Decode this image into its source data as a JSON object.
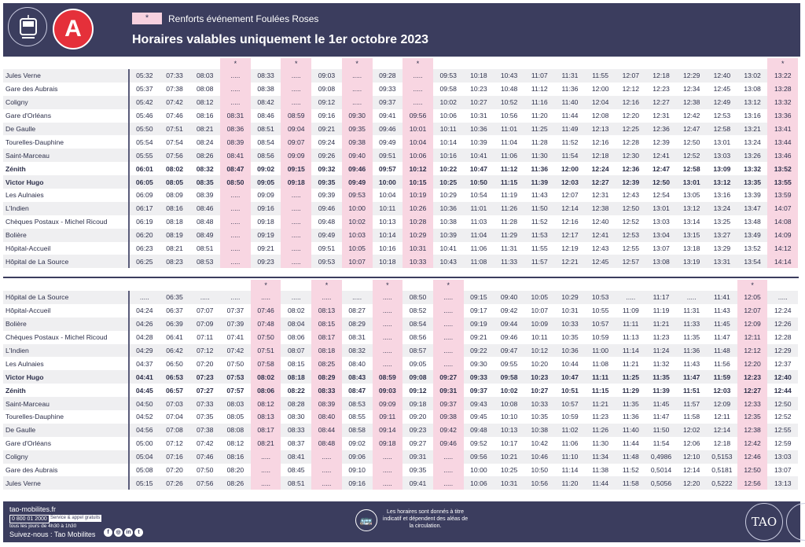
{
  "header": {
    "line_letter": "A",
    "legend_symbol": "*",
    "legend_text": "Renforts événement Foulées Roses",
    "title": "Horaires valables uniquement le 1er octobre 2023",
    "brand_color": "#3b3d5e",
    "line_color": "#e5303a",
    "highlight_color": "#f8d6e2"
  },
  "table1": {
    "marker_cols": [
      4,
      6,
      8,
      10,
      22,
      24
    ],
    "bold_rows": [
      7,
      8
    ],
    "rows": [
      {
        "stop": "Jules Verne",
        "times": [
          "05:32",
          "07:33",
          "08:03",
          ".....",
          "08:33",
          ".....",
          "09:03",
          ".....",
          "09:28",
          ".....",
          "09:53",
          "10:18",
          "10:43",
          "11:07",
          "11:31",
          "11:55",
          "12:07",
          "12:18",
          "12:29",
          "12:40",
          "13:02",
          "13:22"
        ]
      },
      {
        "stop": "Gare des Aubrais",
        "times": [
          "05:37",
          "07:38",
          "08:08",
          ".....",
          "08:38",
          ".....",
          "09:08",
          ".....",
          "09:33",
          ".....",
          "09:58",
          "10:23",
          "10:48",
          "11:12",
          "11:36",
          "12:00",
          "12:12",
          "12:23",
          "12:34",
          "12:45",
          "13:08",
          "13:28"
        ]
      },
      {
        "stop": "Coligny",
        "times": [
          "05:42",
          "07:42",
          "08:12",
          ".....",
          "08:42",
          ".....",
          "09:12",
          ".....",
          "09:37",
          ".....",
          "10:02",
          "10:27",
          "10:52",
          "11:16",
          "11:40",
          "12:04",
          "12:16",
          "12:27",
          "12:38",
          "12:49",
          "13:12",
          "13:32"
        ]
      },
      {
        "stop": "Gare d'Orléans",
        "times": [
          "05:46",
          "07:46",
          "08:16",
          "08:31",
          "08:46",
          "08:59",
          "09:16",
          "09:30",
          "09:41",
          "09:56",
          "10:06",
          "10:31",
          "10:56",
          "11:20",
          "11:44",
          "12:08",
          "12:20",
          "12:31",
          "12:42",
          "12:53",
          "13:16",
          "13:36"
        ]
      },
      {
        "stop": "De Gaulle",
        "times": [
          "05:50",
          "07:51",
          "08:21",
          "08:36",
          "08:51",
          "09:04",
          "09:21",
          "09:35",
          "09:46",
          "10:01",
          "10:11",
          "10:36",
          "11:01",
          "11:25",
          "11:49",
          "12:13",
          "12:25",
          "12:36",
          "12:47",
          "12:58",
          "13:21",
          "13:41"
        ]
      },
      {
        "stop": "Tourelles-Dauphine",
        "times": [
          "05:54",
          "07:54",
          "08:24",
          "08:39",
          "08:54",
          "09:07",
          "09:24",
          "09:38",
          "09:49",
          "10:04",
          "10:14",
          "10:39",
          "11:04",
          "11:28",
          "11:52",
          "12:16",
          "12:28",
          "12:39",
          "12:50",
          "13:01",
          "13:24",
          "13:44"
        ]
      },
      {
        "stop": "Saint-Marceau",
        "times": [
          "05:55",
          "07:56",
          "08:26",
          "08:41",
          "08:56",
          "09:09",
          "09:26",
          "09:40",
          "09:51",
          "10:06",
          "10:16",
          "10:41",
          "11:06",
          "11:30",
          "11:54",
          "12:18",
          "12:30",
          "12:41",
          "12:52",
          "13:03",
          "13:26",
          "13:46"
        ]
      },
      {
        "stop": "Zénith",
        "times": [
          "06:01",
          "08:02",
          "08:32",
          "08:47",
          "09:02",
          "09:15",
          "09:32",
          "09:46",
          "09:57",
          "10:12",
          "10:22",
          "10:47",
          "11:12",
          "11:36",
          "12:00",
          "12:24",
          "12:36",
          "12:47",
          "12:58",
          "13:09",
          "13:32",
          "13:52"
        ]
      },
      {
        "stop": "Victor Hugo",
        "times": [
          "06:05",
          "08:05",
          "08:35",
          "08:50",
          "09:05",
          "09:18",
          "09:35",
          "09:49",
          "10:00",
          "10:15",
          "10:25",
          "10:50",
          "11:15",
          "11:39",
          "12:03",
          "12:27",
          "12:39",
          "12:50",
          "13:01",
          "13:12",
          "13:35",
          "13:55"
        ]
      },
      {
        "stop": "Les Aulnaies",
        "times": [
          "06:09",
          "08:09",
          "08:39",
          ".....",
          "09:09",
          ".....",
          "09:39",
          "09:53",
          "10:04",
          "10:19",
          "10:29",
          "10:54",
          "11:19",
          "11:43",
          "12:07",
          "12:31",
          "12:43",
          "12:54",
          "13:05",
          "13:16",
          "13:39",
          "13:59"
        ]
      },
      {
        "stop": "L'Indien",
        "times": [
          "06:17",
          "08:16",
          "08:46",
          ".....",
          "09:16",
          ".....",
          "09:46",
          "10:00",
          "10:11",
          "10:26",
          "10:36",
          "11:01",
          "11:26",
          "11:50",
          "12:14",
          "12:38",
          "12:50",
          "13:01",
          "13:12",
          "13:24",
          "13:47",
          "14:07"
        ]
      },
      {
        "stop": "Chèques Postaux - Michel Ricoud",
        "times": [
          "06:19",
          "08:18",
          "08:48",
          ".....",
          "09:18",
          ".....",
          "09:48",
          "10:02",
          "10:13",
          "10:28",
          "10:38",
          "11:03",
          "11:28",
          "11:52",
          "12:16",
          "12:40",
          "12:52",
          "13:03",
          "13:14",
          "13:25",
          "13:48",
          "14:08"
        ]
      },
      {
        "stop": "Bolière",
        "times": [
          "06:20",
          "08:19",
          "08:49",
          ".....",
          "09:19",
          ".....",
          "09:49",
          "10:03",
          "10:14",
          "10:29",
          "10:39",
          "11:04",
          "11:29",
          "11:53",
          "12:17",
          "12:41",
          "12:53",
          "13:04",
          "13:15",
          "13:27",
          "13:49",
          "14:09"
        ]
      },
      {
        "stop": "Hôpital-Accueil",
        "times": [
          "06:23",
          "08:21",
          "08:51",
          ".....",
          "09:21",
          ".....",
          "09:51",
          "10:05",
          "10:16",
          "10:31",
          "10:41",
          "11:06",
          "11:31",
          "11:55",
          "12:19",
          "12:43",
          "12:55",
          "13:07",
          "13:18",
          "13:29",
          "13:52",
          "14:12"
        ]
      },
      {
        "stop": "Hôpital de La Source",
        "times": [
          "06:25",
          "08:23",
          "08:53",
          ".....",
          "09:23",
          ".....",
          "09:53",
          "10:07",
          "10:18",
          "10:33",
          "10:43",
          "11:08",
          "11:33",
          "11:57",
          "12:21",
          "12:45",
          "12:57",
          "13:08",
          "13:19",
          "13:31",
          "13:54",
          "14:14"
        ]
      }
    ]
  },
  "table2": {
    "marker_cols": [
      5,
      7,
      9,
      11,
      21,
      23
    ],
    "bold_rows": [
      6,
      7
    ],
    "rows": [
      {
        "stop": "Hôpital de La Source",
        "times": [
          ".....",
          "06:35",
          ".....",
          ".....",
          ".....",
          ".....",
          ".....",
          ".....",
          ".....",
          "08:50",
          ".....",
          "09:15",
          "09:40",
          "10:05",
          "10:29",
          "10:53",
          ".....",
          "11:17",
          ".....",
          "11:41",
          "12:05",
          "....."
        ]
      },
      {
        "stop": "Hôpital-Accueil",
        "times": [
          "04:24",
          "06:37",
          "07:07",
          "07:37",
          "07:46",
          "08:02",
          "08:13",
          "08:27",
          ".....",
          "08:52",
          ".....",
          "09:17",
          "09:42",
          "10:07",
          "10:31",
          "10:55",
          "11:09",
          "11:19",
          "11:31",
          "11:43",
          "12:07",
          "12:24"
        ]
      },
      {
        "stop": "Bolière",
        "times": [
          "04:26",
          "06:39",
          "07:09",
          "07:39",
          "07:48",
          "08:04",
          "08:15",
          "08:29",
          ".....",
          "08:54",
          ".....",
          "09:19",
          "09:44",
          "10:09",
          "10:33",
          "10:57",
          "11:11",
          "11:21",
          "11:33",
          "11:45",
          "12:09",
          "12:26"
        ]
      },
      {
        "stop": "Chèques Postaux - Michel Ricoud",
        "times": [
          "04:28",
          "06:41",
          "07:11",
          "07:41",
          "07:50",
          "08:06",
          "08:17",
          "08:31",
          ".....",
          "08:56",
          ".....",
          "09:21",
          "09:46",
          "10:11",
          "10:35",
          "10:59",
          "11:13",
          "11:23",
          "11:35",
          "11:47",
          "12:11",
          "12:28"
        ]
      },
      {
        "stop": "L'Indien",
        "times": [
          "04:29",
          "06:42",
          "07:12",
          "07:42",
          "07:51",
          "08:07",
          "08:18",
          "08:32",
          ".....",
          "08:57",
          ".....",
          "09:22",
          "09:47",
          "10:12",
          "10:36",
          "11:00",
          "11:14",
          "11:24",
          "11:36",
          "11:48",
          "12:12",
          "12:29"
        ]
      },
      {
        "stop": "Les Aulnaies",
        "times": [
          "04:37",
          "06:50",
          "07:20",
          "07:50",
          "07:58",
          "08:15",
          "08:25",
          "08:40",
          ".....",
          "09:05",
          ".....",
          "09:30",
          "09:55",
          "10:20",
          "10:44",
          "11:08",
          "11:21",
          "11:32",
          "11:43",
          "11:56",
          "12:20",
          "12:37"
        ]
      },
      {
        "stop": "Victor Hugo",
        "times": [
          "04:41",
          "06:53",
          "07:23",
          "07:53",
          "08:02",
          "08:18",
          "08:29",
          "08:43",
          "08:59",
          "09:08",
          "09:27",
          "09:33",
          "09:58",
          "10:23",
          "10:47",
          "11:11",
          "11:25",
          "11:35",
          "11:47",
          "11:59",
          "12:23",
          "12:40"
        ]
      },
      {
        "stop": "Zénith",
        "times": [
          "04:45",
          "06:57",
          "07:27",
          "07:57",
          "08:06",
          "08:22",
          "08:33",
          "08:47",
          "09:03",
          "09:12",
          "09:31",
          "09:37",
          "10:02",
          "10:27",
          "10:51",
          "11:15",
          "11:29",
          "11:39",
          "11:51",
          "12:03",
          "12:27",
          "12:44"
        ]
      },
      {
        "stop": "Saint-Marceau",
        "times": [
          "04:50",
          "07:03",
          "07:33",
          "08:03",
          "08:12",
          "08:28",
          "08:39",
          "08:53",
          "09:09",
          "09:18",
          "09:37",
          "09:43",
          "10:08",
          "10:33",
          "10:57",
          "11:21",
          "11:35",
          "11:45",
          "11:57",
          "12:09",
          "12:33",
          "12:50"
        ]
      },
      {
        "stop": "Tourelles-Dauphine",
        "times": [
          "04:52",
          "07:04",
          "07:35",
          "08:05",
          "08:13",
          "08:30",
          "08:40",
          "08:55",
          "09:11",
          "09:20",
          "09:38",
          "09:45",
          "10:10",
          "10:35",
          "10:59",
          "11:23",
          "11:36",
          "11:47",
          "11:58",
          "12:11",
          "12:35",
          "12:52"
        ]
      },
      {
        "stop": "De Gaulle",
        "times": [
          "04:56",
          "07:08",
          "07:38",
          "08:08",
          "08:17",
          "08:33",
          "08:44",
          "08:58",
          "09:14",
          "09:23",
          "09:42",
          "09:48",
          "10:13",
          "10:38",
          "11:02",
          "11:26",
          "11:40",
          "11:50",
          "12:02",
          "12:14",
          "12:38",
          "12:55"
        ]
      },
      {
        "stop": "Gare d'Orléans",
        "times": [
          "05:00",
          "07:12",
          "07:42",
          "08:12",
          "08:21",
          "08:37",
          "08:48",
          "09:02",
          "09:18",
          "09:27",
          "09:46",
          "09:52",
          "10:17",
          "10:42",
          "11:06",
          "11:30",
          "11:44",
          "11:54",
          "12:06",
          "12:18",
          "12:42",
          "12:59"
        ]
      },
      {
        "stop": "Coligny",
        "times": [
          "05:04",
          "07:16",
          "07:46",
          "08:16",
          ".....",
          "08:41",
          ".....",
          "09:06",
          ".....",
          "09:31",
          ".....",
          "09:56",
          "10:21",
          "10:46",
          "11:10",
          "11:34",
          "11:48",
          "0,4986",
          "12:10",
          "0,5153",
          "12:46",
          "13:03"
        ]
      },
      {
        "stop": "Gare des Aubrais",
        "times": [
          "05:08",
          "07:20",
          "07:50",
          "08:20",
          ".....",
          "08:45",
          ".....",
          "09:10",
          ".....",
          "09:35",
          ".....",
          "10:00",
          "10:25",
          "10:50",
          "11:14",
          "11:38",
          "11:52",
          "0,5014",
          "12:14",
          "0,5181",
          "12:50",
          "13:07"
        ]
      },
      {
        "stop": "Jules Verne",
        "times": [
          "05:15",
          "07:26",
          "07:56",
          "08:26",
          ".....",
          "08:51",
          ".....",
          "09:16",
          ".....",
          "09:41",
          ".....",
          "10:06",
          "10:31",
          "10:56",
          "11:20",
          "11:44",
          "11:58",
          "0,5056",
          "12:20",
          "0,5222",
          "12:56",
          "13:13"
        ]
      }
    ]
  },
  "footer": {
    "website": "tao-mobilites.fr",
    "phone": "0 800 01 2000",
    "phone_note": "Service & appel gratuits",
    "hours": "tous les jours de 4h30 à 1h30",
    "follow": "Suivez-nous : Tao Mobilites",
    "social_icons": [
      "f",
      "ig",
      "in",
      "tw"
    ],
    "notice": "Les horaires sont donnés à titre indicatif et dépendent des aléas de la circulation.",
    "brand": "TAO"
  }
}
